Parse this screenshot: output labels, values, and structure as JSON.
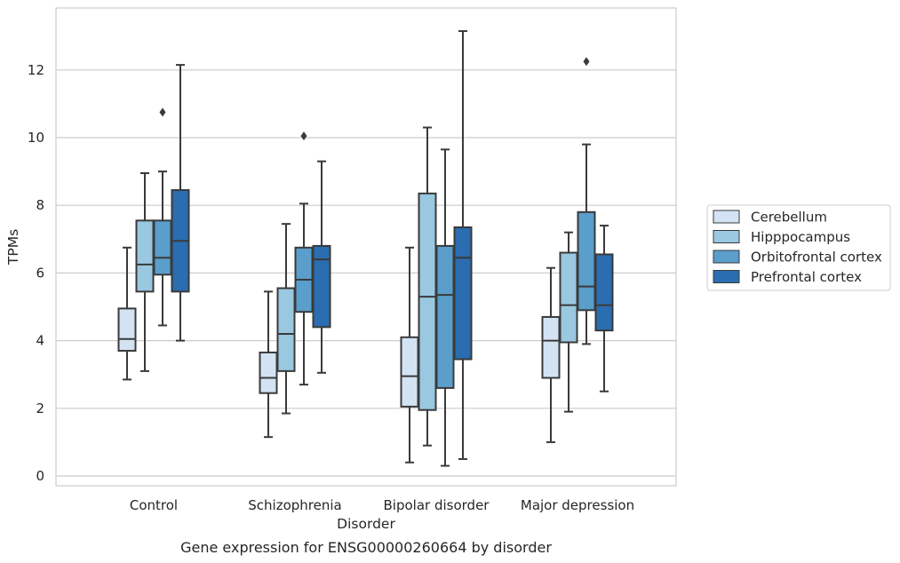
{
  "caption": "Gene expression for ENSG00000260664 by disorder",
  "chart_data": {
    "type": "box",
    "xlabel": "Disorder",
    "ylabel": "TPMs",
    "ylim": [
      -0.3,
      13.7
    ],
    "yticks": [
      0,
      2,
      4,
      6,
      8,
      10,
      12
    ],
    "grid": "horizontal",
    "legend_position": "right",
    "categories": [
      "Control",
      "Schizophrenia",
      "Bipolar disorder",
      "Major depression"
    ],
    "series": [
      {
        "name": "Cerebellum",
        "color": "#d3e3f3",
        "boxes": [
          {
            "whisker_low": 2.85,
            "q1": 3.7,
            "median": 4.05,
            "q3": 4.95,
            "whisker_high": 6.75,
            "outliers": []
          },
          {
            "whisker_low": 1.15,
            "q1": 2.45,
            "median": 2.9,
            "q3": 3.65,
            "whisker_high": 5.45,
            "outliers": []
          },
          {
            "whisker_low": 0.4,
            "q1": 2.05,
            "median": 2.95,
            "q3": 4.1,
            "whisker_high": 6.75,
            "outliers": []
          },
          {
            "whisker_low": 1.0,
            "q1": 2.9,
            "median": 4.0,
            "q3": 4.7,
            "whisker_high": 6.15,
            "outliers": []
          }
        ]
      },
      {
        "name": "Hipppocampus",
        "color": "#9ac8e0",
        "boxes": [
          {
            "whisker_low": 3.1,
            "q1": 5.45,
            "median": 6.25,
            "q3": 7.55,
            "whisker_high": 8.95,
            "outliers": []
          },
          {
            "whisker_low": 1.85,
            "q1": 3.1,
            "median": 4.2,
            "q3": 5.55,
            "whisker_high": 7.45,
            "outliers": []
          },
          {
            "whisker_low": 0.9,
            "q1": 1.95,
            "median": 5.3,
            "q3": 8.35,
            "whisker_high": 10.3,
            "outliers": []
          },
          {
            "whisker_low": 1.9,
            "q1": 3.95,
            "median": 5.05,
            "q3": 6.6,
            "whisker_high": 7.2,
            "outliers": []
          }
        ]
      },
      {
        "name": "Orbitofrontal cortex",
        "color": "#5a9ecb",
        "boxes": [
          {
            "whisker_low": 4.45,
            "q1": 5.95,
            "median": 6.45,
            "q3": 7.55,
            "whisker_high": 9.0,
            "outliers": [
              10.75
            ]
          },
          {
            "whisker_low": 2.7,
            "q1": 4.85,
            "median": 5.8,
            "q3": 6.75,
            "whisker_high": 8.05,
            "outliers": [
              10.05
            ]
          },
          {
            "whisker_low": 0.3,
            "q1": 2.6,
            "median": 5.35,
            "q3": 6.8,
            "whisker_high": 9.65,
            "outliers": []
          },
          {
            "whisker_low": 3.9,
            "q1": 4.9,
            "median": 5.6,
            "q3": 7.8,
            "whisker_high": 9.8,
            "outliers": [
              12.25
            ]
          }
        ]
      },
      {
        "name": "Prefrontal cortex",
        "color": "#2a6db0",
        "boxes": [
          {
            "whisker_low": 4.0,
            "q1": 5.45,
            "median": 6.95,
            "q3": 8.45,
            "whisker_high": 12.15,
            "outliers": []
          },
          {
            "whisker_low": 3.05,
            "q1": 4.4,
            "median": 6.4,
            "q3": 6.8,
            "whisker_high": 9.3,
            "outliers": []
          },
          {
            "whisker_low": 0.5,
            "q1": 3.45,
            "median": 6.45,
            "q3": 7.35,
            "whisker_high": 13.15,
            "outliers": []
          },
          {
            "whisker_low": 2.5,
            "q1": 4.3,
            "median": 5.05,
            "q3": 6.55,
            "whisker_high": 7.4,
            "outliers": []
          }
        ]
      }
    ]
  }
}
